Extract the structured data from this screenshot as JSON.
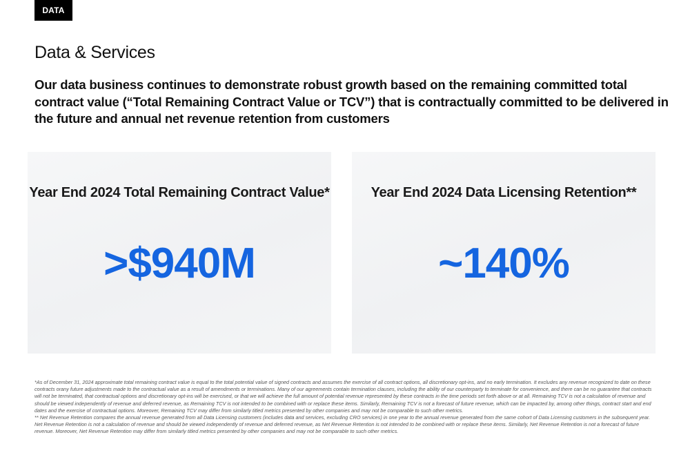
{
  "tag": "DATA",
  "title": "Data & Services",
  "lead": "Our data business continues to demonstrate robust growth based on the remaining committed total contract value (“Total Remaining Contract Value or TCV”) that is contractually committed to be delivered in the future and annual net revenue retention from customers",
  "cards": [
    {
      "title": "Year End 2024 Total Remaining Contract Value*",
      "value": ">$940M"
    },
    {
      "title": "Year End 2024 Data Licensing Retention**",
      "value": "~140%"
    }
  ],
  "footnotes": [
    "*As of December 31, 2024 approximate total remaining contract value is equal to the total potential value of signed contracts and assumes the exercise of all contract options, all discretionary opt-ins, and no early termination. It excludes any revenue recognized to date on these contracts orany future adjustments made to the contractual value as a result of amendments or terminations. Many of our agreements contain termination clauses, including the ability of our counterparty to terminate for convenience, and there can be no guarantee that contracts will not be terminated, that contractual options and discretionary opt-ins will be exercised, or that we will achieve the full amount of potential revenue represented by these contracts in the time periods set forth above or at all. Remaining TCV is not a calculation of revenue and should be viewed independently of revenue and deferred revenue, as Remaining TCV is not intended to be combined with or replace these items. Similarly, Remaining TCV is not a forecast of future revenue, which can be impacted by, among other things, contract start and end dates and the exercise of contractual options. Moreover, Remaining TCV may differ from similarly titled metrics presented by other companies and may not be comparable to such other metrics.",
    "** Net Revenue Retention compares the annual revenue generated from all Data Licensing customers (includes data and services, excluding CRO services) in one year to the annual revenue generated from the same cohort of Data Licensing customers in the subsequent year. Net Revenue Retention is not a calculation of revenue and should be viewed independently of revenue and deferred revenue, as Net Revenue Retention is not intended to be combined with or replace these items. Similarly, Net Revenue Retention is not a forecast of future revenue. Moreover, Net Revenue Retention may differ from similarly titled metrics presented by other companies and may not be comparable to such other metrics."
  ],
  "colors": {
    "accent": "#1565e0",
    "tag_bg": "#000000",
    "card_bg": "#f3f4f6"
  }
}
